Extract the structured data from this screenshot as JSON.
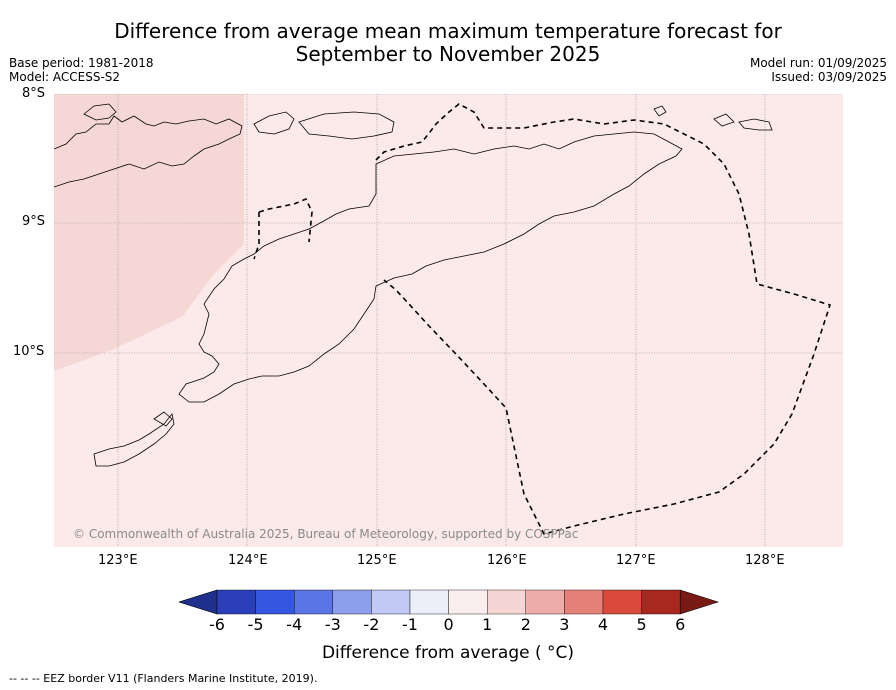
{
  "title_line1": "Difference from average mean maximum temperature forecast for",
  "title_line2": "September to November 2025",
  "base_period": "Base period: 1981-2018",
  "model": "Model: ACCESS-S2",
  "model_run": "Model run: 01/09/2025",
  "issued": "Issued: 03/09/2025",
  "latitudes": [
    "8°S",
    "9°S",
    "10°S"
  ],
  "longitudes": [
    "123°E",
    "124°E",
    "125°E",
    "126°E",
    "127°E",
    "128°E"
  ],
  "copyright": "© Commonwealth of Australia 2025, Bureau of Meteorology, supported by COSPPac",
  "colorbar": {
    "ticks": [
      "-6",
      "-5",
      "-4",
      "-3",
      "-2",
      "-1",
      "0",
      "1",
      "2",
      "3",
      "4",
      "5",
      "6"
    ],
    "colors": [
      "#1f2f8c",
      "#2a3fb8",
      "#3556e0",
      "#5b75e6",
      "#8d9fec",
      "#c1c9f4",
      "#eceef9",
      "#fbeeee",
      "#f5d6d4",
      "#eeadaa",
      "#e58179",
      "#d94a3d",
      "#a8271f",
      "#7a1a14"
    ],
    "label": "Difference from average ( °C)"
  },
  "map_colors": {
    "band_0_1": "#fbeae9",
    "band_1_2": "#f5d7d5",
    "gridline": "#888888"
  },
  "legend_note": "--  --  -- EEZ border V11 (Flanders Marine Institute, 2019)."
}
